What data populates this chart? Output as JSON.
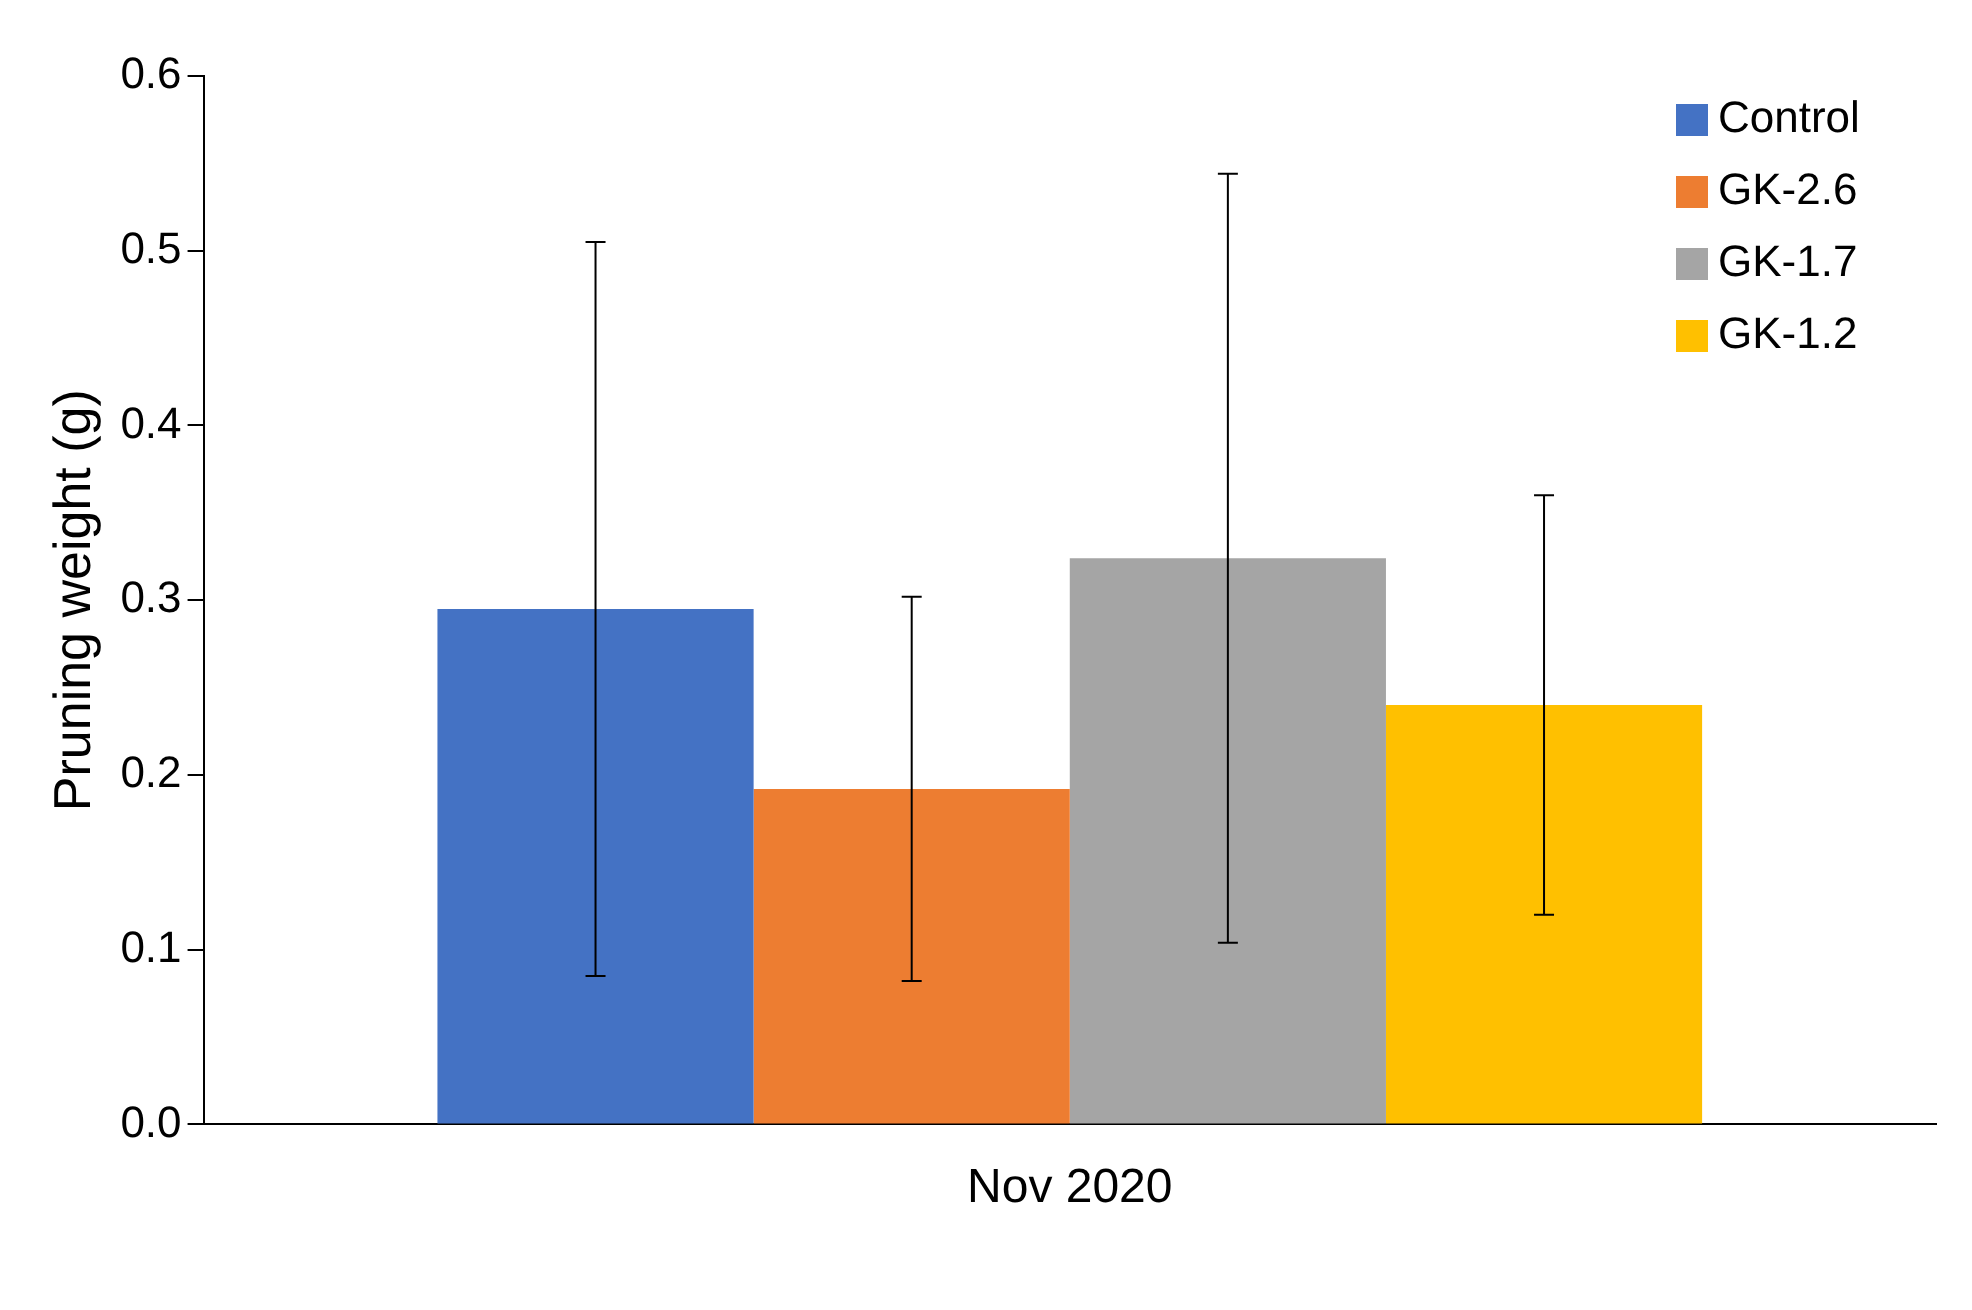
{
  "chart_data": {
    "type": "bar",
    "ylabel": "Pruning weight (g)",
    "categories": [
      "Nov 2020"
    ],
    "series": [
      {
        "name": "Control",
        "color": "#4472c4",
        "values": [
          0.295
        ],
        "errors": [
          0.21
        ]
      },
      {
        "name": "GK-2.6",
        "color": "#ed7d31",
        "values": [
          0.192
        ],
        "errors": [
          0.11
        ]
      },
      {
        "name": "GK-1.7",
        "color": "#a5a5a5",
        "values": [
          0.324
        ],
        "errors": [
          0.22
        ]
      },
      {
        "name": "GK-1.2",
        "color": "#ffc000",
        "values": [
          0.24
        ],
        "errors": [
          0.12
        ]
      }
    ],
    "ylim": [
      0,
      0.6
    ],
    "yticks": [
      {
        "value": 0,
        "label": "0.0"
      },
      {
        "value": 0.1,
        "label": "0.1"
      },
      {
        "value": 0.2,
        "label": "0.2"
      },
      {
        "value": 0.3,
        "label": "0.3"
      },
      {
        "value": 0.4,
        "label": "0.4"
      },
      {
        "value": 0.5,
        "label": "0.5"
      },
      {
        "value": 0.6,
        "label": "0.6"
      }
    ],
    "grid": false,
    "legend": "top right"
  }
}
